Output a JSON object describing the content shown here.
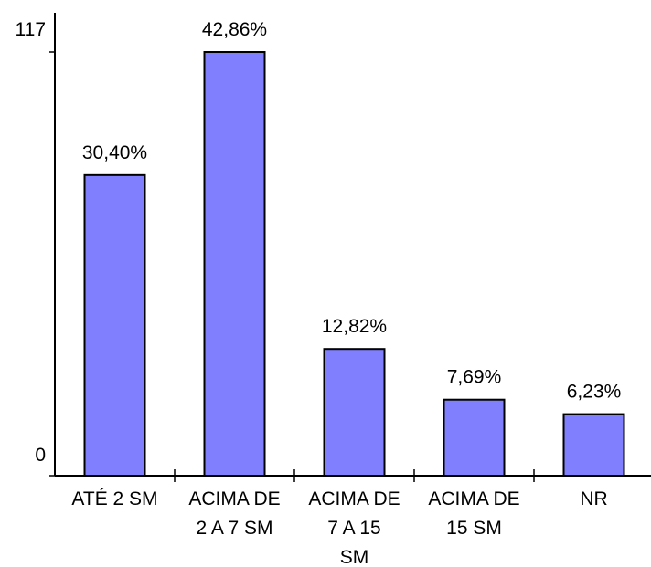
{
  "chart_data": {
    "type": "bar",
    "categories": [
      [
        "ATÉ 2 SM"
      ],
      [
        "ACIMA DE",
        "2 A 7 SM"
      ],
      [
        "ACIMA DE",
        "7 A 15",
        "SM"
      ],
      [
        "ACIMA DE",
        "15 SM"
      ],
      [
        "NR"
      ]
    ],
    "values": [
      83,
      117,
      35,
      21,
      17
    ],
    "data_labels": [
      "30,40%",
      "42,86%",
      "12,82%",
      "7,69%",
      "6,23%"
    ],
    "ylim": [
      0,
      117
    ],
    "y_tick_labels": [
      "0",
      "117"
    ],
    "bar_color": "#8080ff",
    "grid": false,
    "legend": "none"
  }
}
